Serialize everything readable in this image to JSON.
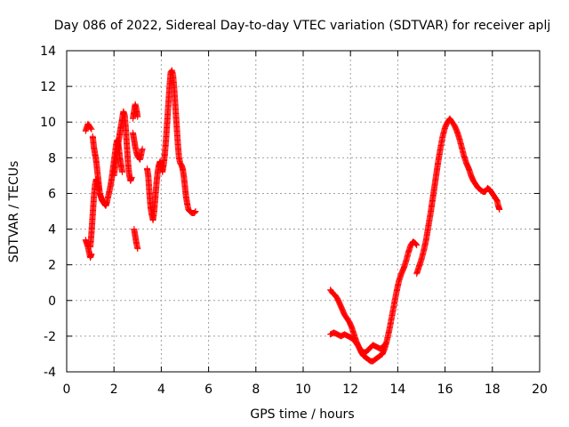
{
  "chart_data": {
    "type": "scatter",
    "title": "Day 086 of 2022, Sidereal Day-to-day VTEC variation (SDTVAR) for receiver aplj",
    "xlabel": "GPS time / hours",
    "ylabel": "SDTVAR / TECUs",
    "xlim": [
      0,
      20
    ],
    "ylim": [
      -4,
      14
    ],
    "xticks": [
      "0",
      "2",
      "4",
      "6",
      "8",
      "10",
      "12",
      "14",
      "16",
      "18",
      "20"
    ],
    "yticks": [
      "-4",
      "-2",
      "0",
      "2",
      "4",
      "6",
      "8",
      "10",
      "12",
      "14"
    ],
    "grid": true,
    "marker": "+",
    "color": "#ff0000",
    "series": [
      {
        "name": "SDTVAR",
        "segments": [
          [
            [
              0.8,
              3.4
            ],
            [
              0.85,
              3.2
            ],
            [
              0.9,
              3.0
            ],
            [
              0.95,
              2.7
            ],
            [
              1.0,
              2.4
            ],
            [
              1.05,
              2.6
            ]
          ],
          [
            [
              0.8,
              9.5
            ],
            [
              0.85,
              9.7
            ],
            [
              0.9,
              9.9
            ],
            [
              0.95,
              9.8
            ],
            [
              1.0,
              9.7
            ],
            [
              1.05,
              9.6
            ]
          ],
          [
            [
              1.0,
              3.0
            ],
            [
              1.05,
              3.8
            ],
            [
              1.1,
              4.8
            ],
            [
              1.15,
              5.8
            ],
            [
              1.2,
              6.5
            ],
            [
              1.25,
              6.8
            ],
            [
              1.3,
              6.6
            ],
            [
              1.35,
              6.2
            ]
          ],
          [
            [
              1.1,
              9.2
            ],
            [
              1.15,
              8.6
            ],
            [
              1.2,
              8.2
            ],
            [
              1.25,
              7.8
            ],
            [
              1.3,
              7.2
            ],
            [
              1.35,
              6.6
            ],
            [
              1.4,
              6.0
            ],
            [
              1.45,
              5.8
            ],
            [
              1.5,
              5.6
            ],
            [
              1.55,
              5.5
            ],
            [
              1.6,
              5.4
            ],
            [
              1.65,
              5.3
            ],
            [
              1.7,
              5.5
            ],
            [
              1.75,
              5.8
            ],
            [
              1.8,
              6.1
            ],
            [
              1.85,
              6.4
            ],
            [
              1.9,
              6.8
            ],
            [
              1.95,
              7.3
            ],
            [
              2.0,
              7.8
            ],
            [
              2.05,
              8.3
            ],
            [
              2.1,
              8.8
            ],
            [
              2.15,
              9.0
            ],
            [
              2.2,
              8.6
            ],
            [
              2.25,
              8.0
            ],
            [
              2.3,
              7.6
            ],
            [
              2.35,
              7.2
            ]
          ],
          [
            [
              2.0,
              7.0
            ],
            [
              2.05,
              7.5
            ],
            [
              2.1,
              8.0
            ],
            [
              2.15,
              8.5
            ],
            [
              2.2,
              9.0
            ],
            [
              2.25,
              9.4
            ],
            [
              2.3,
              9.8
            ],
            [
              2.35,
              10.2
            ],
            [
              2.4,
              10.6
            ],
            [
              2.45,
              10.4
            ],
            [
              2.5,
              9.6
            ],
            [
              2.55,
              8.6
            ],
            [
              2.6,
              7.6
            ],
            [
              2.65,
              7.0
            ],
            [
              2.7,
              6.7
            ],
            [
              2.75,
              6.9
            ]
          ],
          [
            [
              2.8,
              10.2
            ],
            [
              2.85,
              10.6
            ],
            [
              2.9,
              11.0
            ],
            [
              2.95,
              10.7
            ],
            [
              3.0,
              10.3
            ]
          ],
          [
            [
              2.8,
              9.4
            ],
            [
              2.85,
              9.0
            ],
            [
              2.9,
              8.6
            ],
            [
              2.95,
              8.3
            ],
            [
              3.0,
              8.1
            ],
            [
              3.05,
              8.0
            ],
            [
              3.1,
              7.9
            ],
            [
              3.15,
              8.2
            ],
            [
              3.2,
              8.5
            ]
          ],
          [
            [
              2.85,
              4.0
            ],
            [
              2.9,
              3.6
            ],
            [
              2.95,
              3.2
            ],
            [
              3.0,
              2.9
            ]
          ],
          [
            [
              3.4,
              7.4
            ],
            [
              3.45,
              7.0
            ],
            [
              3.5,
              6.0
            ],
            [
              3.55,
              5.2
            ],
            [
              3.6,
              4.8
            ],
            [
              3.65,
              4.5
            ],
            [
              3.7,
              5.0
            ],
            [
              3.75,
              5.8
            ],
            [
              3.8,
              6.6
            ],
            [
              3.85,
              7.2
            ],
            [
              3.9,
              7.6
            ],
            [
              3.95,
              7.8
            ],
            [
              4.0,
              7.5
            ],
            [
              4.05,
              7.2
            ],
            [
              4.1,
              7.6
            ],
            [
              4.15,
              8.2
            ],
            [
              4.2,
              9.0
            ],
            [
              4.25,
              10.0
            ],
            [
              4.3,
              11.0
            ],
            [
              4.35,
              12.0
            ],
            [
              4.4,
              12.8
            ],
            [
              4.45,
              12.9
            ],
            [
              4.5,
              12.6
            ],
            [
              4.55,
              11.8
            ],
            [
              4.6,
              10.8
            ],
            [
              4.65,
              9.8
            ],
            [
              4.7,
              8.8
            ],
            [
              4.75,
              8.0
            ],
            [
              4.8,
              7.7
            ],
            [
              4.85,
              7.6
            ],
            [
              4.9,
              7.4
            ],
            [
              4.95,
              7.0
            ],
            [
              5.0,
              6.4
            ],
            [
              5.05,
              5.8
            ],
            [
              5.1,
              5.4
            ],
            [
              5.15,
              5.1
            ],
            [
              5.2,
              5.0
            ],
            [
              5.3,
              4.9
            ],
            [
              5.4,
              4.9
            ],
            [
              5.45,
              5.0
            ]
          ],
          [
            [
              11.15,
              0.6
            ],
            [
              11.25,
              0.4
            ],
            [
              11.35,
              0.3
            ],
            [
              11.45,
              0.1
            ],
            [
              11.55,
              -0.2
            ],
            [
              11.65,
              -0.5
            ],
            [
              11.75,
              -0.8
            ],
            [
              11.85,
              -1.0
            ],
            [
              11.95,
              -1.2
            ],
            [
              12.05,
              -1.5
            ],
            [
              12.15,
              -1.9
            ],
            [
              12.25,
              -2.3
            ],
            [
              12.35,
              -2.6
            ],
            [
              12.45,
              -2.9
            ],
            [
              12.55,
              -3.1
            ],
            [
              12.65,
              -3.2
            ],
            [
              12.75,
              -3.3
            ],
            [
              12.85,
              -3.4
            ],
            [
              12.95,
              -3.4
            ],
            [
              13.05,
              -3.3
            ],
            [
              13.15,
              -3.2
            ],
            [
              13.25,
              -3.1
            ],
            [
              13.35,
              -3.0
            ],
            [
              13.45,
              -2.7
            ],
            [
              13.55,
              -2.2
            ],
            [
              13.65,
              -1.6
            ],
            [
              13.75,
              -0.9
            ],
            [
              13.85,
              -0.2
            ],
            [
              13.95,
              0.5
            ],
            [
              14.05,
              1.1
            ],
            [
              14.15,
              1.5
            ],
            [
              14.25,
              1.8
            ],
            [
              14.35,
              2.2
            ],
            [
              14.45,
              2.7
            ],
            [
              14.55,
              3.1
            ],
            [
              14.65,
              3.3
            ],
            [
              14.75,
              3.2
            ],
            [
              14.8,
              3.1
            ]
          ],
          [
            [
              11.15,
              -1.9
            ],
            [
              11.3,
              -1.8
            ],
            [
              11.45,
              -1.9
            ],
            [
              11.6,
              -2.0
            ],
            [
              11.75,
              -1.9
            ],
            [
              11.9,
              -2.0
            ],
            [
              12.05,
              -2.1
            ],
            [
              12.2,
              -2.3
            ],
            [
              12.35,
              -2.6
            ],
            [
              12.5,
              -2.9
            ],
            [
              12.65,
              -2.9
            ],
            [
              12.8,
              -2.7
            ],
            [
              12.95,
              -2.5
            ],
            [
              13.1,
              -2.6
            ],
            [
              13.25,
              -2.7
            ],
            [
              13.4,
              -2.6
            ],
            [
              13.5,
              -2.4
            ]
          ],
          [
            [
              14.8,
              1.5
            ],
            [
              14.9,
              1.9
            ],
            [
              15.0,
              2.3
            ],
            [
              15.1,
              2.8
            ],
            [
              15.2,
              3.4
            ],
            [
              15.3,
              4.2
            ],
            [
              15.4,
              5.0
            ],
            [
              15.5,
              5.9
            ],
            [
              15.6,
              6.8
            ],
            [
              15.7,
              7.7
            ],
            [
              15.8,
              8.5
            ],
            [
              15.9,
              9.2
            ],
            [
              16.0,
              9.7
            ],
            [
              16.1,
              10.0
            ],
            [
              16.2,
              10.2
            ],
            [
              16.3,
              10.0
            ],
            [
              16.4,
              9.8
            ],
            [
              16.5,
              9.5
            ],
            [
              16.6,
              9.1
            ],
            [
              16.7,
              8.6
            ],
            [
              16.8,
              8.1
            ],
            [
              16.9,
              7.7
            ],
            [
              17.0,
              7.4
            ],
            [
              17.1,
              7.0
            ],
            [
              17.2,
              6.7
            ],
            [
              17.3,
              6.5
            ],
            [
              17.4,
              6.3
            ],
            [
              17.5,
              6.2
            ],
            [
              17.6,
              6.1
            ],
            [
              17.7,
              6.1
            ],
            [
              17.8,
              6.3
            ],
            [
              17.9,
              6.2
            ],
            [
              18.0,
              6.0
            ],
            [
              18.1,
              5.8
            ],
            [
              18.2,
              5.6
            ],
            [
              18.25,
              5.3
            ],
            [
              18.3,
              5.1
            ]
          ]
        ]
      }
    ]
  }
}
